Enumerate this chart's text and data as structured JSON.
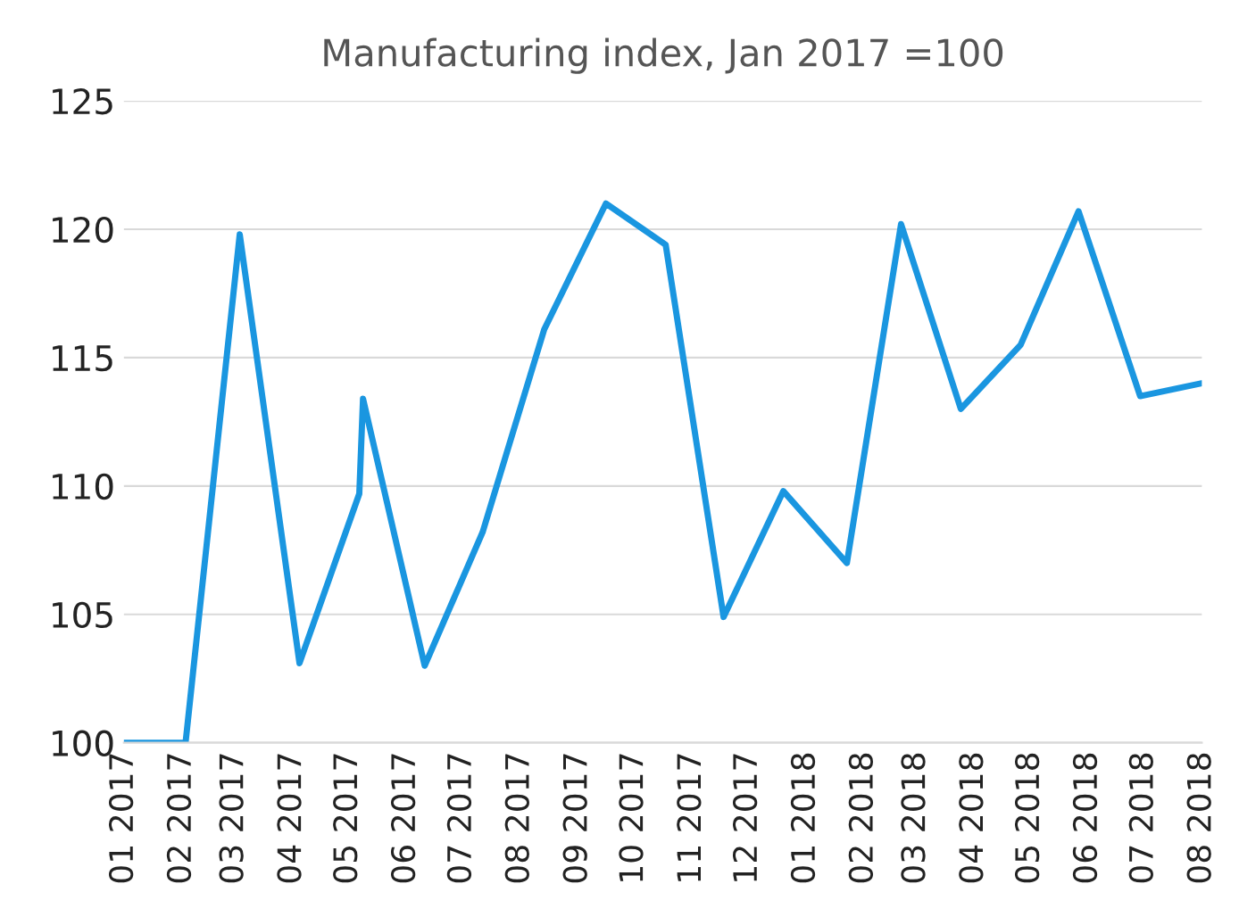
{
  "chart_data": {
    "type": "line",
    "title": "Manufacturing index, Jan 2017 =100",
    "series": [
      {
        "color": "#1a96e0",
        "x": [
          "2017-01-01",
          "2017-02-03",
          "2017-03-04",
          "2017-04-05",
          "2017-05-07",
          "2017-05-09",
          "2017-06-11",
          "2017-07-12",
          "2017-08-14",
          "2017-09-16",
          "2017-10-18",
          "2017-11-18",
          "2017-12-20",
          "2018-01-23",
          "2018-02-21",
          "2018-03-25",
          "2018-04-26",
          "2018-05-27",
          "2018-06-29",
          "2018-08-01"
        ],
        "values": [
          100,
          100,
          119.8,
          103.1,
          109.7,
          113.4,
          103.0,
          108.2,
          116.1,
          121.0,
          119.4,
          104.9,
          109.8,
          107.0,
          120.2,
          113.0,
          115.5,
          120.7,
          113.5,
          114.0
        ]
      }
    ],
    "xlim": [
      "2017-01-01",
      "2018-08-01"
    ],
    "xticks": [
      {
        "value": "2017-01",
        "label": "01 2017"
      },
      {
        "value": "2017-02",
        "label": "02 2017"
      },
      {
        "value": "2017-03",
        "label": "03 2017"
      },
      {
        "value": "2017-04",
        "label": "04 2017"
      },
      {
        "value": "2017-05",
        "label": "05 2017"
      },
      {
        "value": "2017-06",
        "label": "06 2017"
      },
      {
        "value": "2017-07",
        "label": "07 2017"
      },
      {
        "value": "2017-08",
        "label": "08 2017"
      },
      {
        "value": "2017-09",
        "label": "09 2017"
      },
      {
        "value": "2017-10",
        "label": "10 2017"
      },
      {
        "value": "2017-11",
        "label": "11 2017"
      },
      {
        "value": "2017-12",
        "label": "12 2017"
      },
      {
        "value": "2018-01",
        "label": "01 2018"
      },
      {
        "value": "2018-02",
        "label": "02 2018"
      },
      {
        "value": "2018-03",
        "label": "03 2018"
      },
      {
        "value": "2018-04",
        "label": "04 2018"
      },
      {
        "value": "2018-05",
        "label": "05 2018"
      },
      {
        "value": "2018-06",
        "label": "06 2018"
      },
      {
        "value": "2018-07",
        "label": "07 2018"
      },
      {
        "value": "2018-08",
        "label": "08 2018"
      }
    ],
    "ylim": [
      100,
      125
    ],
    "yticks": [
      100,
      105,
      110,
      115,
      120,
      125
    ],
    "grid": "y",
    "legend": false,
    "marker": "none",
    "line_style": "solid"
  }
}
